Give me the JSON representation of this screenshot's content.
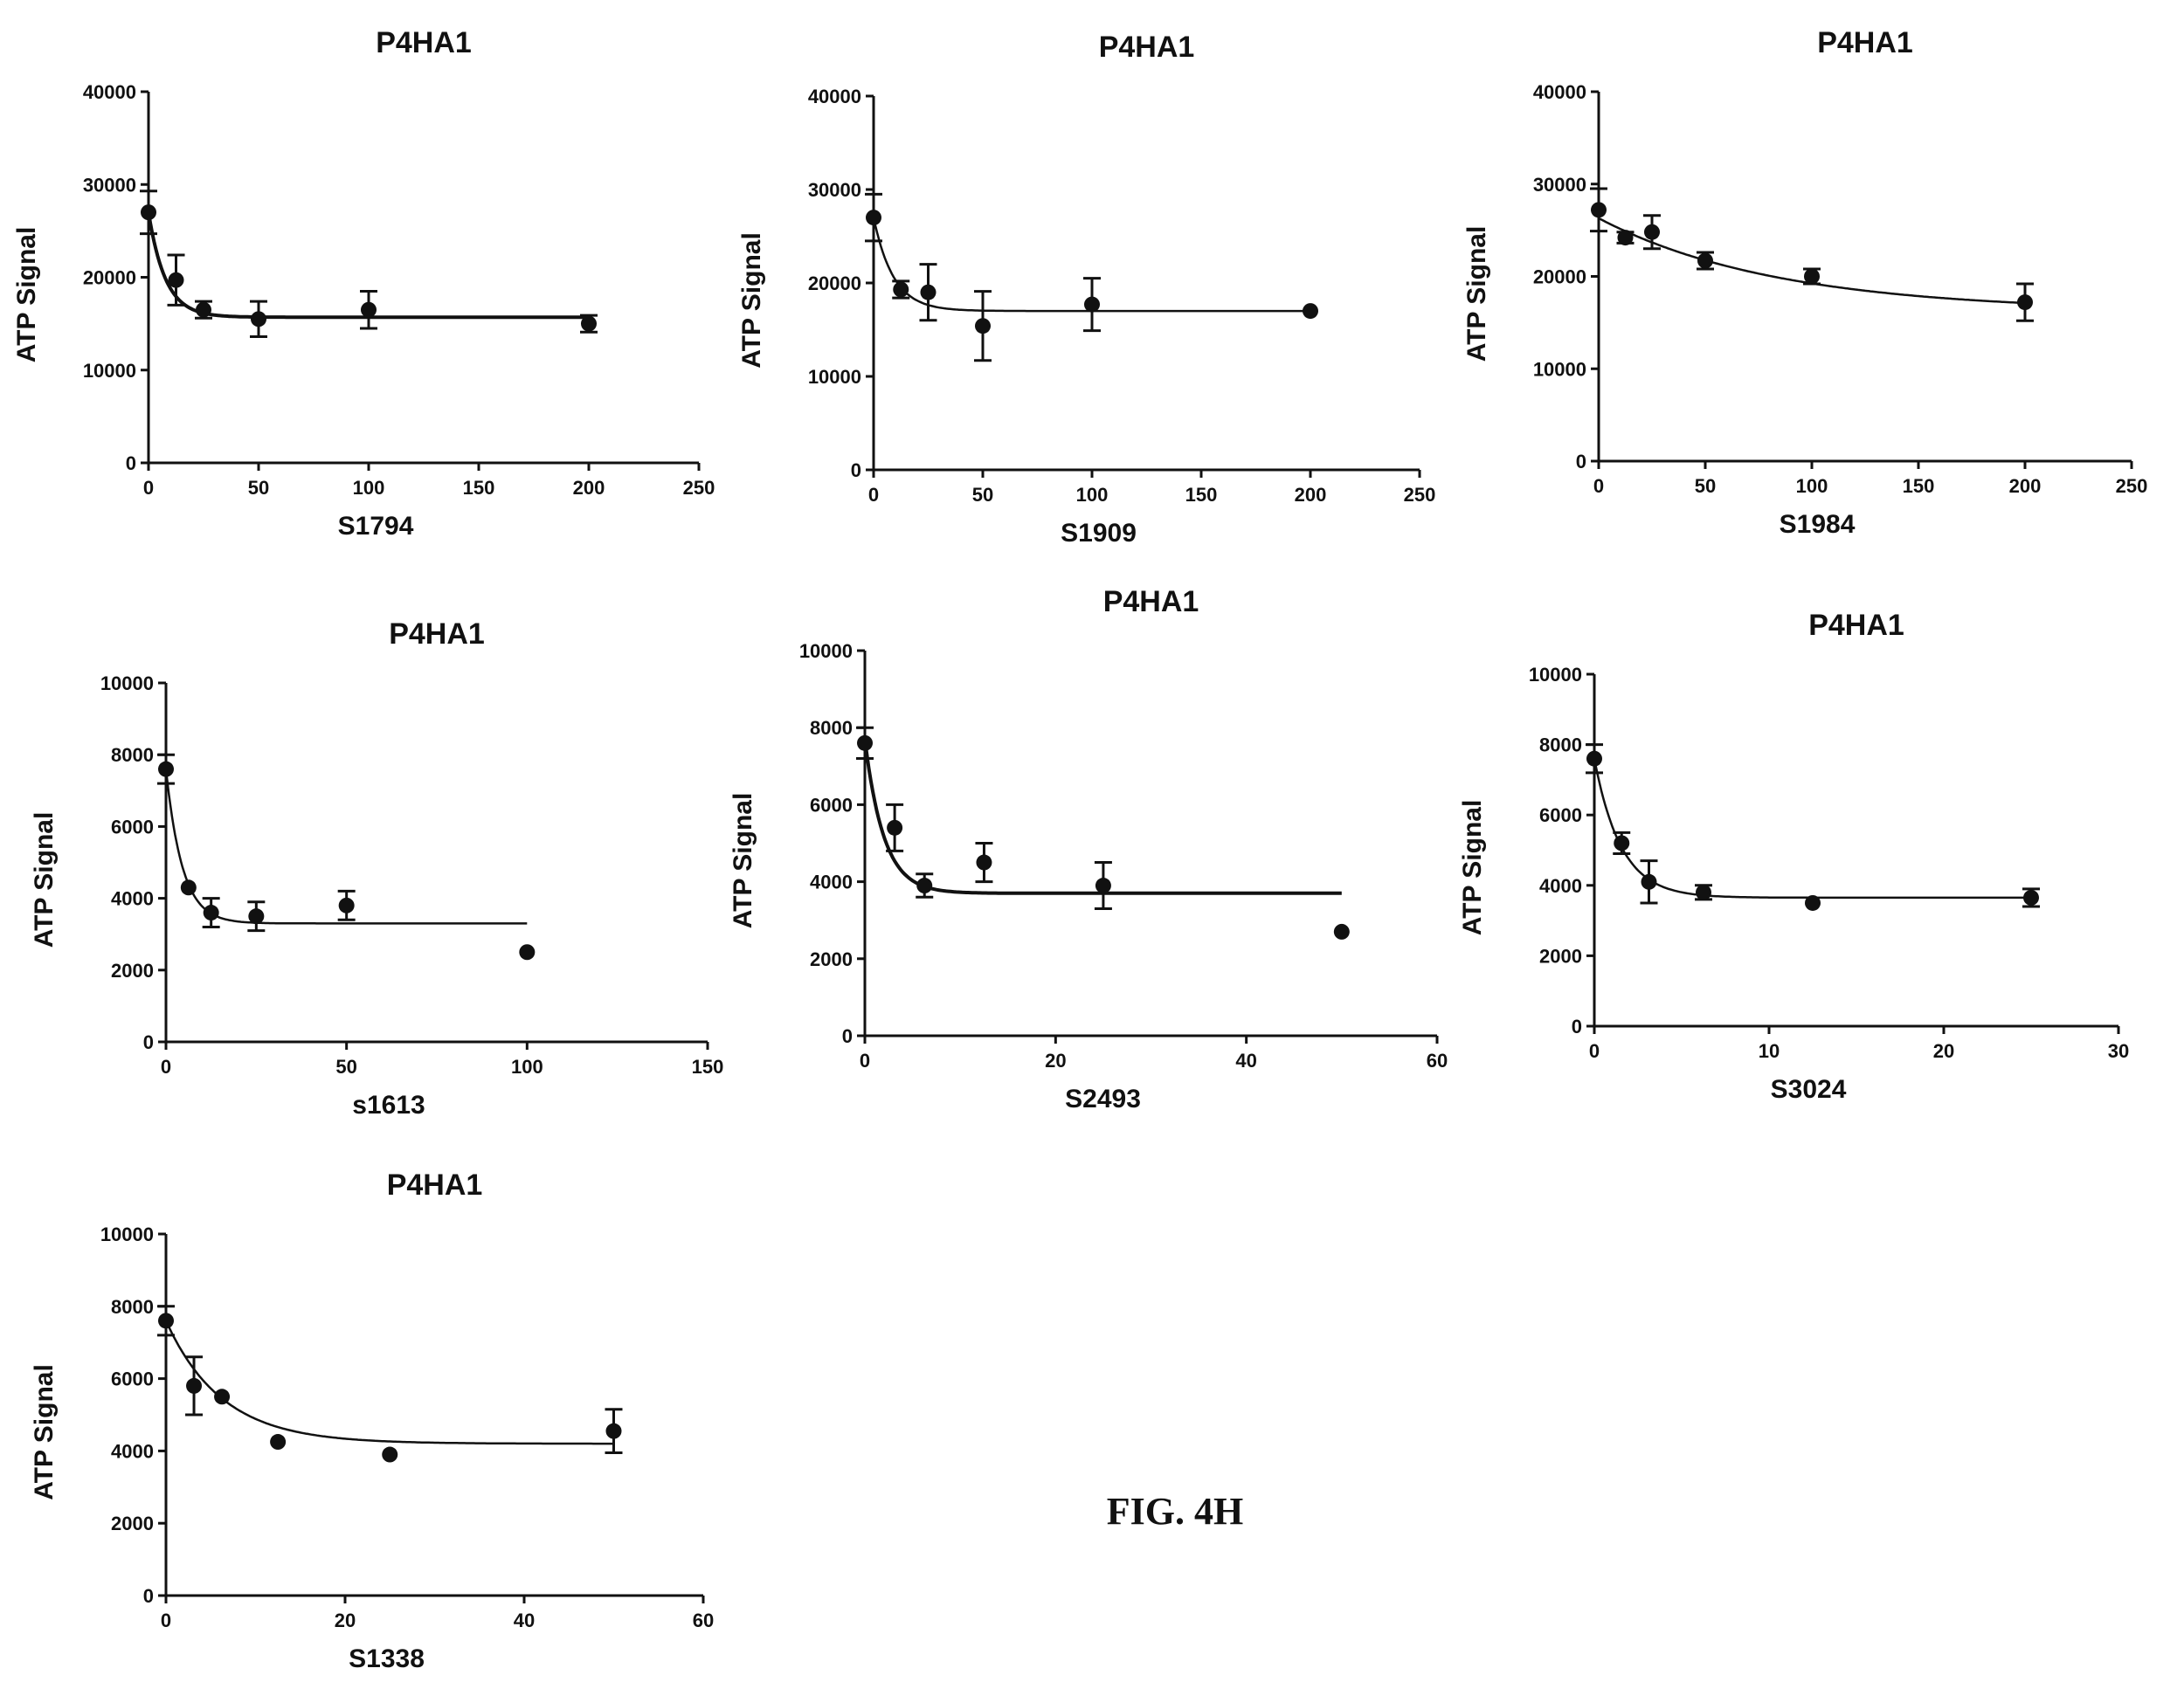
{
  "figure_label": "FIG. 4H",
  "chart_data": [
    {
      "type": "scatter",
      "title": "P4HA1",
      "xlabel": "S1794",
      "ylabel": "ATP Signal",
      "xlim": [
        0,
        250
      ],
      "ylim": [
        0,
        40000
      ],
      "xticks": [
        "0",
        "50",
        "100",
        "150",
        "200",
        "250"
      ],
      "yticks": [
        "0",
        "10000",
        "20000",
        "30000",
        "40000"
      ],
      "points": [
        {
          "x": 0,
          "y": 27000,
          "err": 2300
        },
        {
          "x": 12.5,
          "y": 19700,
          "err": 2700
        },
        {
          "x": 25,
          "y": 16500,
          "err": 900
        },
        {
          "x": 50,
          "y": 15500,
          "err": 1900
        },
        {
          "x": 100,
          "y": 16500,
          "err": 2000
        },
        {
          "x": 200,
          "y": 15000,
          "err": 900
        }
      ],
      "fit": {
        "top": 27000,
        "bottom": 15700,
        "k": 0.13,
        "xmax": 200
      }
    },
    {
      "type": "scatter",
      "title": "P4HA1",
      "xlabel": "S1909",
      "ylabel": "ATP Signal",
      "xlim": [
        0,
        250
      ],
      "ylim": [
        0,
        40000
      ],
      "xticks": [
        "0",
        "50",
        "100",
        "150",
        "200",
        "250"
      ],
      "yticks": [
        "0",
        "10000",
        "20000",
        "30000",
        "40000"
      ],
      "points": [
        {
          "x": 0,
          "y": 27000,
          "err": 2500
        },
        {
          "x": 12.5,
          "y": 19300,
          "err": 900
        },
        {
          "x": 25,
          "y": 19000,
          "err": 3000
        },
        {
          "x": 50,
          "y": 15400,
          "err": 3700
        },
        {
          "x": 100,
          "y": 17700,
          "err": 2800
        },
        {
          "x": 200,
          "y": 17000,
          "err": 0
        }
      ],
      "fit": {
        "top": 27000,
        "bottom": 17000,
        "k": 0.11,
        "xmax": 200
      }
    },
    {
      "type": "scatter",
      "title": "P4HA1",
      "xlabel": "S1984",
      "ylabel": "ATP Signal",
      "xlim": [
        0,
        250
      ],
      "ylim": [
        0,
        40000
      ],
      "xticks": [
        "0",
        "50",
        "100",
        "150",
        "200",
        "250"
      ],
      "yticks": [
        "0",
        "10000",
        "20000",
        "30000",
        "40000"
      ],
      "points": [
        {
          "x": 0,
          "y": 27200,
          "err": 2300
        },
        {
          "x": 12.5,
          "y": 24200,
          "err": 600
        },
        {
          "x": 25,
          "y": 24800,
          "err": 1800
        },
        {
          "x": 50,
          "y": 21700,
          "err": 900
        },
        {
          "x": 100,
          "y": 20000,
          "err": 800
        },
        {
          "x": 200,
          "y": 17200,
          "err": 2000
        }
      ],
      "fit": {
        "top": 26300,
        "bottom": 16200,
        "k": 0.012,
        "xmax": 200
      }
    },
    {
      "type": "scatter",
      "title": "P4HA1",
      "xlabel": "s1613",
      "ylabel": "ATP Signal",
      "xlim": [
        0,
        150
      ],
      "ylim": [
        0,
        10000
      ],
      "xticks": [
        "0",
        "50",
        "100",
        "150"
      ],
      "yticks": [
        "0",
        "2000",
        "4000",
        "6000",
        "8000",
        "10000"
      ],
      "points": [
        {
          "x": 0,
          "y": 7600,
          "err": 400
        },
        {
          "x": 6.25,
          "y": 4300,
          "err": 0
        },
        {
          "x": 12.5,
          "y": 3600,
          "err": 400
        },
        {
          "x": 25,
          "y": 3500,
          "err": 400
        },
        {
          "x": 50,
          "y": 3800,
          "err": 400
        },
        {
          "x": 100,
          "y": 2500,
          "err": 0
        }
      ],
      "fit": {
        "top": 7600,
        "bottom": 3300,
        "k": 0.22,
        "xmax": 100
      }
    },
    {
      "type": "scatter",
      "title": "P4HA1",
      "xlabel": "S2493",
      "ylabel": "ATP Signal",
      "xlim": [
        0,
        60
      ],
      "ylim": [
        0,
        10000
      ],
      "xticks": [
        "0",
        "20",
        "40",
        "60"
      ],
      "yticks": [
        "0",
        "2000",
        "4000",
        "6000",
        "8000",
        "10000"
      ],
      "points": [
        {
          "x": 0,
          "y": 7600,
          "err": 400
        },
        {
          "x": 3.125,
          "y": 5400,
          "err": 600
        },
        {
          "x": 6.25,
          "y": 3900,
          "err": 300
        },
        {
          "x": 12.5,
          "y": 4500,
          "err": 500
        },
        {
          "x": 25,
          "y": 3900,
          "err": 600
        },
        {
          "x": 50,
          "y": 2700,
          "err": 0
        }
      ],
      "fit": {
        "top": 7700,
        "bottom": 3700,
        "k": 0.5,
        "xmax": 50
      }
    },
    {
      "type": "scatter",
      "title": "P4HA1",
      "xlabel": "S3024",
      "ylabel": "ATP Signal",
      "xlim": [
        0,
        30
      ],
      "ylim": [
        0,
        10000
      ],
      "xticks": [
        "0",
        "10",
        "20",
        "30"
      ],
      "yticks": [
        "0",
        "2000",
        "4000",
        "6000",
        "8000",
        "10000"
      ],
      "points": [
        {
          "x": 0,
          "y": 7600,
          "err": 400
        },
        {
          "x": 1.5625,
          "y": 5200,
          "err": 300
        },
        {
          "x": 3.125,
          "y": 4100,
          "err": 600
        },
        {
          "x": 6.25,
          "y": 3800,
          "err": 200
        },
        {
          "x": 12.5,
          "y": 3500,
          "err": 0
        },
        {
          "x": 25,
          "y": 3650,
          "err": 250
        }
      ],
      "fit": {
        "top": 7600,
        "bottom": 3650,
        "k": 0.65,
        "xmax": 25
      }
    },
    {
      "type": "scatter",
      "title": "P4HA1",
      "xlabel": "S1338",
      "ylabel": "ATP Signal",
      "xlim": [
        0,
        60
      ],
      "ylim": [
        0,
        10000
      ],
      "xticks": [
        "0",
        "20",
        "40",
        "60"
      ],
      "yticks": [
        "0",
        "2000",
        "4000",
        "6000",
        "8000",
        "10000"
      ],
      "points": [
        {
          "x": 0,
          "y": 7600,
          "err": 400
        },
        {
          "x": 3.125,
          "y": 5800,
          "err": 800
        },
        {
          "x": 6.25,
          "y": 5500,
          "err": 0
        },
        {
          "x": 12.5,
          "y": 4250,
          "err": 0
        },
        {
          "x": 25,
          "y": 3900,
          "err": 0
        },
        {
          "x": 50,
          "y": 4550,
          "err": 600
        }
      ],
      "fit": {
        "top": 7600,
        "bottom": 4200,
        "k": 0.16,
        "xmax": 50
      }
    }
  ]
}
